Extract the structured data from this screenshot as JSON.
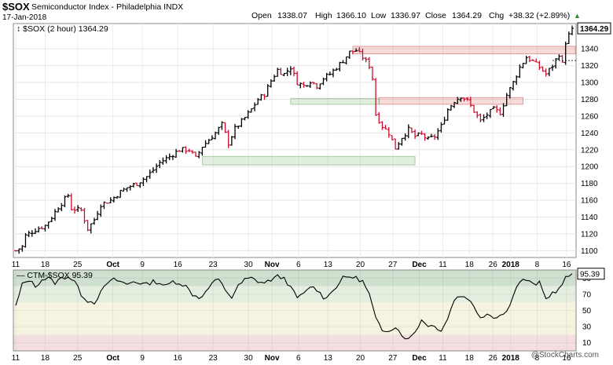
{
  "header": {
    "symbol": "$SOX",
    "name": "Semiconductor Index - Philadelphia  INDX",
    "date": "17-Jan-2018",
    "open_label": "Open",
    "open_value": "1338.07",
    "high_label": "High",
    "high_value": "1366.10",
    "low_label": "Low",
    "low_value": "1336.97",
    "close_label": "Close",
    "close_value": "1364.29",
    "chg_label": "Chg",
    "chg_value": "+38.32 (+2.89%)",
    "chg_arrow": "▲"
  },
  "watermark": "@StockCharts.com",
  "chart_data": [
    {
      "type": "candlestick",
      "legend": "$SOX (2 hour) 1364.29",
      "last_value_label": "1364.29",
      "ylim": [
        1092,
        1370
      ],
      "y_ticks": [
        1100,
        1120,
        1140,
        1160,
        1180,
        1200,
        1220,
        1240,
        1260,
        1280,
        1300,
        1320,
        1340
      ],
      "x_tick_labels": [
        "11",
        "18",
        "25",
        "Oct",
        "9",
        "16",
        "23",
        "30",
        "Nov",
        "6",
        "13",
        "20",
        "27",
        "Dec",
        "11",
        "18",
        "26",
        "2018",
        "8",
        "16"
      ],
      "grid": true,
      "up_color": "#000000",
      "down_color": "#c8102e",
      "close_path": [
        [
          0,
          1100
        ],
        [
          2,
          1105
        ],
        [
          3,
          1118
        ],
        [
          6,
          1125
        ],
        [
          9,
          1130
        ],
        [
          11,
          1140
        ],
        [
          13,
          1152
        ],
        [
          16,
          1166
        ],
        [
          17,
          1150
        ],
        [
          20,
          1148
        ],
        [
          22,
          1126
        ],
        [
          24,
          1137
        ],
        [
          26,
          1155
        ],
        [
          29,
          1160
        ],
        [
          32,
          1170
        ],
        [
          34,
          1175
        ],
        [
          37,
          1180
        ],
        [
          40,
          1188
        ],
        [
          42,
          1196
        ],
        [
          44,
          1205
        ],
        [
          47,
          1212
        ],
        [
          50,
          1220
        ],
        [
          53,
          1220
        ],
        [
          55,
          1210
        ],
        [
          57,
          1224
        ],
        [
          59,
          1232
        ],
        [
          61,
          1240
        ],
        [
          63,
          1250
        ],
        [
          65,
          1228
        ],
        [
          67,
          1245
        ],
        [
          70,
          1258
        ],
        [
          72,
          1268
        ],
        [
          74,
          1280
        ],
        [
          76,
          1286
        ],
        [
          78,
          1302
        ],
        [
          80,
          1315
        ],
        [
          82,
          1310
        ],
        [
          84,
          1318
        ],
        [
          86,
          1300
        ],
        [
          88,
          1296
        ],
        [
          90,
          1302
        ],
        [
          92,
          1296
        ],
        [
          94,
          1305
        ],
        [
          96,
          1310
        ],
        [
          98,
          1318
        ],
        [
          100,
          1326
        ],
        [
          102,
          1336
        ],
        [
          104,
          1338
        ],
        [
          106,
          1330
        ],
        [
          108,
          1320
        ],
        [
          109,
          1305
        ],
        [
          110,
          1262
        ],
        [
          112,
          1248
        ],
        [
          114,
          1240
        ],
        [
          116,
          1222
        ],
        [
          118,
          1235
        ],
        [
          120,
          1244
        ],
        [
          122,
          1236
        ],
        [
          124,
          1238
        ],
        [
          126,
          1232
        ],
        [
          128,
          1236
        ],
        [
          130,
          1248
        ],
        [
          132,
          1268
        ],
        [
          134,
          1278
        ],
        [
          136,
          1284
        ],
        [
          138,
          1278
        ],
        [
          140,
          1266
        ],
        [
          142,
          1254
        ],
        [
          144,
          1262
        ],
        [
          146,
          1268
        ],
        [
          148,
          1264
        ],
        [
          150,
          1285
        ],
        [
          152,
          1300
        ],
        [
          154,
          1318
        ],
        [
          156,
          1330
        ],
        [
          158,
          1325
        ],
        [
          160,
          1318
        ],
        [
          162,
          1310
        ],
        [
          164,
          1320
        ],
        [
          166,
          1334
        ],
        [
          167,
          1322
        ],
        [
          168,
          1348
        ],
        [
          170,
          1364.29
        ]
      ],
      "bar_count": 171,
      "shaded_zones": [
        {
          "kind": "resistance",
          "x0": 103,
          "x1": 171,
          "y0": 1334,
          "y1": 1343
        },
        {
          "kind": "resistance",
          "x0": 111,
          "x1": 155,
          "y0": 1274,
          "y1": 1282
        },
        {
          "kind": "support",
          "x0": 84,
          "x1": 111,
          "y0": 1274,
          "y1": 1281
        },
        {
          "kind": "support",
          "x0": 57,
          "x1": 122,
          "y0": 1202,
          "y1": 1212
        }
      ],
      "reference_line": 1326
    },
    {
      "type": "line",
      "legend": "CTM-$SOX 95.39",
      "last_value_label": "95.39",
      "ylim": [
        0,
        100
      ],
      "y_ticks": [
        10,
        30,
        50,
        70,
        90
      ],
      "x_tick_labels": [
        "11",
        "18",
        "25",
        "Oct",
        "9",
        "16",
        "23",
        "30",
        "Nov",
        "6",
        "13",
        "20",
        "27",
        "Dec",
        "11",
        "18",
        "26",
        "2018",
        "8",
        "16"
      ],
      "bands": [
        {
          "from": 80,
          "to": 100,
          "color": "#cfe0cf"
        },
        {
          "from": 60,
          "to": 80,
          "color": "#e4efdf"
        },
        {
          "from": 20,
          "to": 60,
          "color": "#f6f3e0"
        },
        {
          "from": 0,
          "to": 20,
          "color": "#f3dfdf"
        }
      ],
      "values": [
        [
          0,
          55
        ],
        [
          2,
          82
        ],
        [
          4,
          88
        ],
        [
          6,
          80
        ],
        [
          8,
          88
        ],
        [
          10,
          90
        ],
        [
          12,
          84
        ],
        [
          14,
          90
        ],
        [
          16,
          92
        ],
        [
          18,
          86
        ],
        [
          20,
          70
        ],
        [
          22,
          62
        ],
        [
          24,
          60
        ],
        [
          26,
          72
        ],
        [
          28,
          84
        ],
        [
          30,
          88
        ],
        [
          32,
          86
        ],
        [
          34,
          82
        ],
        [
          36,
          86
        ],
        [
          38,
          84
        ],
        [
          40,
          82
        ],
        [
          42,
          86
        ],
        [
          44,
          84
        ],
        [
          46,
          80
        ],
        [
          48,
          86
        ],
        [
          50,
          84
        ],
        [
          52,
          80
        ],
        [
          54,
          70
        ],
        [
          56,
          66
        ],
        [
          58,
          72
        ],
        [
          60,
          84
        ],
        [
          62,
          88
        ],
        [
          64,
          76
        ],
        [
          66,
          66
        ],
        [
          68,
          80
        ],
        [
          70,
          88
        ],
        [
          72,
          90
        ],
        [
          74,
          86
        ],
        [
          76,
          84
        ],
        [
          78,
          88
        ],
        [
          80,
          92
        ],
        [
          82,
          90
        ],
        [
          84,
          78
        ],
        [
          86,
          66
        ],
        [
          88,
          70
        ],
        [
          90,
          80
        ],
        [
          92,
          76
        ],
        [
          94,
          66
        ],
        [
          96,
          70
        ],
        [
          98,
          80
        ],
        [
          100,
          90
        ],
        [
          102,
          92
        ],
        [
          104,
          90
        ],
        [
          106,
          86
        ],
        [
          108,
          70
        ],
        [
          110,
          40
        ],
        [
          112,
          24
        ],
        [
          114,
          26
        ],
        [
          116,
          30
        ],
        [
          118,
          20
        ],
        [
          120,
          14
        ],
        [
          122,
          24
        ],
        [
          124,
          38
        ],
        [
          126,
          32
        ],
        [
          128,
          30
        ],
        [
          130,
          26
        ],
        [
          132,
          40
        ],
        [
          134,
          64
        ],
        [
          136,
          68
        ],
        [
          138,
          66
        ],
        [
          140,
          54
        ],
        [
          142,
          42
        ],
        [
          144,
          46
        ],
        [
          146,
          42
        ],
        [
          148,
          44
        ],
        [
          150,
          48
        ],
        [
          152,
          70
        ],
        [
          154,
          86
        ],
        [
          156,
          88
        ],
        [
          158,
          82
        ],
        [
          160,
          84
        ],
        [
          162,
          64
        ],
        [
          164,
          72
        ],
        [
          166,
          76
        ],
        [
          168,
          90
        ],
        [
          170,
          95.39
        ]
      ]
    }
  ]
}
